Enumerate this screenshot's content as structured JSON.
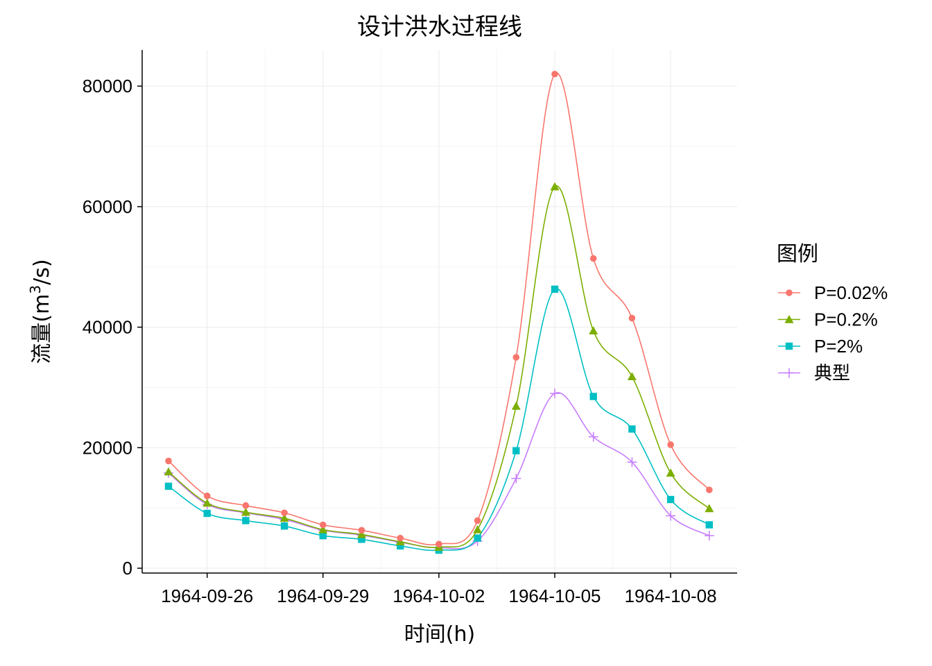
{
  "chart_data": {
    "type": "line",
    "title": "设计洪水过程线",
    "xlabel": "时间(h)",
    "ylabel_main": "流量(m",
    "ylabel_sup": "3",
    "ylabel_tail": "/s)",
    "legend_title": "图例",
    "legend_position": "right",
    "grid": true,
    "x": [
      "1964-09-25",
      "1964-09-26",
      "1964-09-27",
      "1964-09-28",
      "1964-09-29",
      "1964-09-30",
      "1964-10-01",
      "1964-10-02",
      "1964-10-03",
      "1964-10-04",
      "1964-10-05",
      "1964-10-06",
      "1964-10-07",
      "1964-10-08",
      "1964-10-09"
    ],
    "x_ticks": [
      "1964-09-26",
      "1964-09-29",
      "1964-10-02",
      "1964-10-05",
      "1964-10-08"
    ],
    "y_ticks": [
      0,
      20000,
      40000,
      60000,
      80000
    ],
    "ylim": [
      -800,
      86000
    ],
    "series": [
      {
        "name": "P=0.02%",
        "color": "#F8766D",
        "marker": "circle",
        "values": [
          17800,
          12000,
          10400,
          9200,
          7200,
          6300,
          5000,
          4000,
          7900,
          35000,
          82000,
          51400,
          41500,
          20500,
          13000
        ]
      },
      {
        "name": "P=0.2%",
        "color": "#7CAE00",
        "marker": "triangle",
        "values": [
          16000,
          10800,
          9300,
          8300,
          6400,
          5600,
          4400,
          3500,
          6400,
          26900,
          63300,
          39400,
          31800,
          15800,
          9900
        ]
      },
      {
        "name": "P=2%",
        "color": "#00BFC4",
        "marker": "square",
        "values": [
          13600,
          9100,
          7900,
          7000,
          5400,
          4800,
          3700,
          3000,
          5000,
          19500,
          46300,
          28500,
          23100,
          11400,
          7200
        ]
      },
      {
        "name": "典型",
        "color": "#C77CFF",
        "marker": "plus",
        "values": [
          15800,
          10600,
          9200,
          8100,
          6300,
          5500,
          4300,
          3400,
          4500,
          14900,
          29000,
          21800,
          17600,
          8700,
          5400
        ]
      }
    ]
  }
}
